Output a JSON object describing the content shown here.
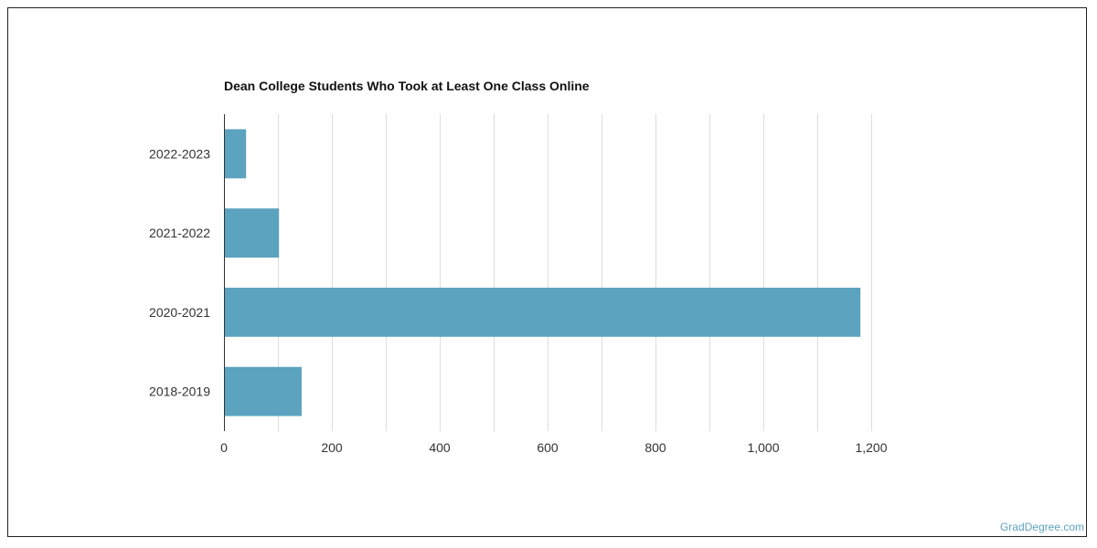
{
  "chart_data": {
    "type": "bar",
    "orientation": "horizontal",
    "title": "Dean College Students Who Took at Least One Class Online",
    "categories": [
      "2022-2023",
      "2021-2022",
      "2020-2021",
      "2018-2019"
    ],
    "values": [
      41,
      102,
      1180,
      144
    ],
    "xlim": [
      0,
      1200
    ],
    "xticks": [
      0,
      200,
      400,
      600,
      800,
      1000,
      1200
    ],
    "xtick_labels": [
      "0",
      "200",
      "400",
      "600",
      "800",
      "1,000",
      "1,200"
    ],
    "xlabel": "",
    "ylabel": "",
    "grid": true,
    "bar_color": "#5ba3be",
    "grid_color": "#dddddd",
    "axis_color": "#333333"
  },
  "footer": {
    "source_label": "GradDegree.com"
  }
}
